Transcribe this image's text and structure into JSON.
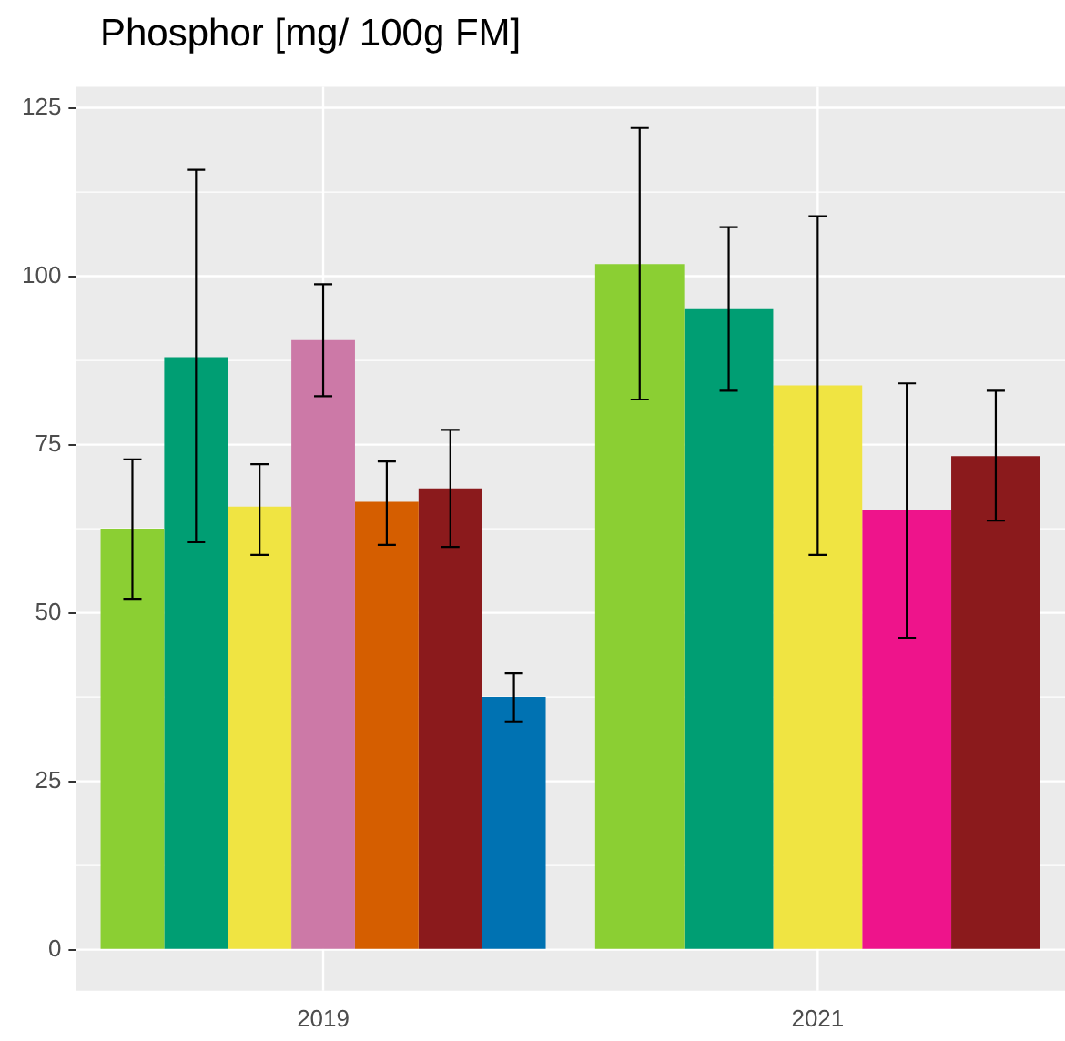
{
  "chart_data": {
    "type": "bar",
    "title": "Phosphor [mg/ 100g FM]",
    "categories": [
      "2019",
      "2021"
    ],
    "series": [
      {
        "values": [
          62.5,
          101.8
        ],
        "colors": [
          "#8bcf33",
          "#8bcf33"
        ],
        "errors": [
          [
            52.1,
            72.8
          ],
          [
            81.7,
            122
          ]
        ]
      },
      {
        "values": [
          88,
          95.1
        ],
        "colors": [
          "#009e73",
          "#009e73"
        ],
        "errors": [
          [
            60.5,
            115.8
          ],
          [
            83,
            107.3
          ]
        ]
      },
      {
        "values": [
          65.8,
          83.8
        ],
        "colors": [
          "#f0e442",
          "#f0e442"
        ],
        "errors": [
          [
            58.6,
            72.1
          ],
          [
            58.6,
            108.9
          ]
        ]
      },
      {
        "values": [
          90.5,
          65.2
        ],
        "colors": [
          "#cc79a7",
          "#ee148b"
        ],
        "errors": [
          [
            82.2,
            98.8
          ],
          [
            46.3,
            84.1
          ]
        ]
      },
      {
        "values": [
          66.5,
          73.3
        ],
        "colors": [
          "#d55e00",
          "#8b1a1c"
        ],
        "errors": [
          [
            60.1,
            72.5
          ],
          [
            63.7,
            83
          ]
        ]
      },
      {
        "values": [
          68.5,
          null
        ],
        "colors": [
          "#8b1a1c",
          "#8b1a1c"
        ],
        "errors": [
          [
            59.8,
            77.2
          ],
          null
        ]
      },
      {
        "values": [
          37.5,
          null
        ],
        "colors": [
          "#0072b2",
          "#0072b2"
        ],
        "errors": [
          [
            33.9,
            41
          ],
          null
        ]
      }
    ],
    "ylim": [
      -6.1,
      128.1
    ],
    "yticks": [
      0,
      25,
      50,
      75,
      100,
      125
    ],
    "grid": true,
    "legend": false
  }
}
